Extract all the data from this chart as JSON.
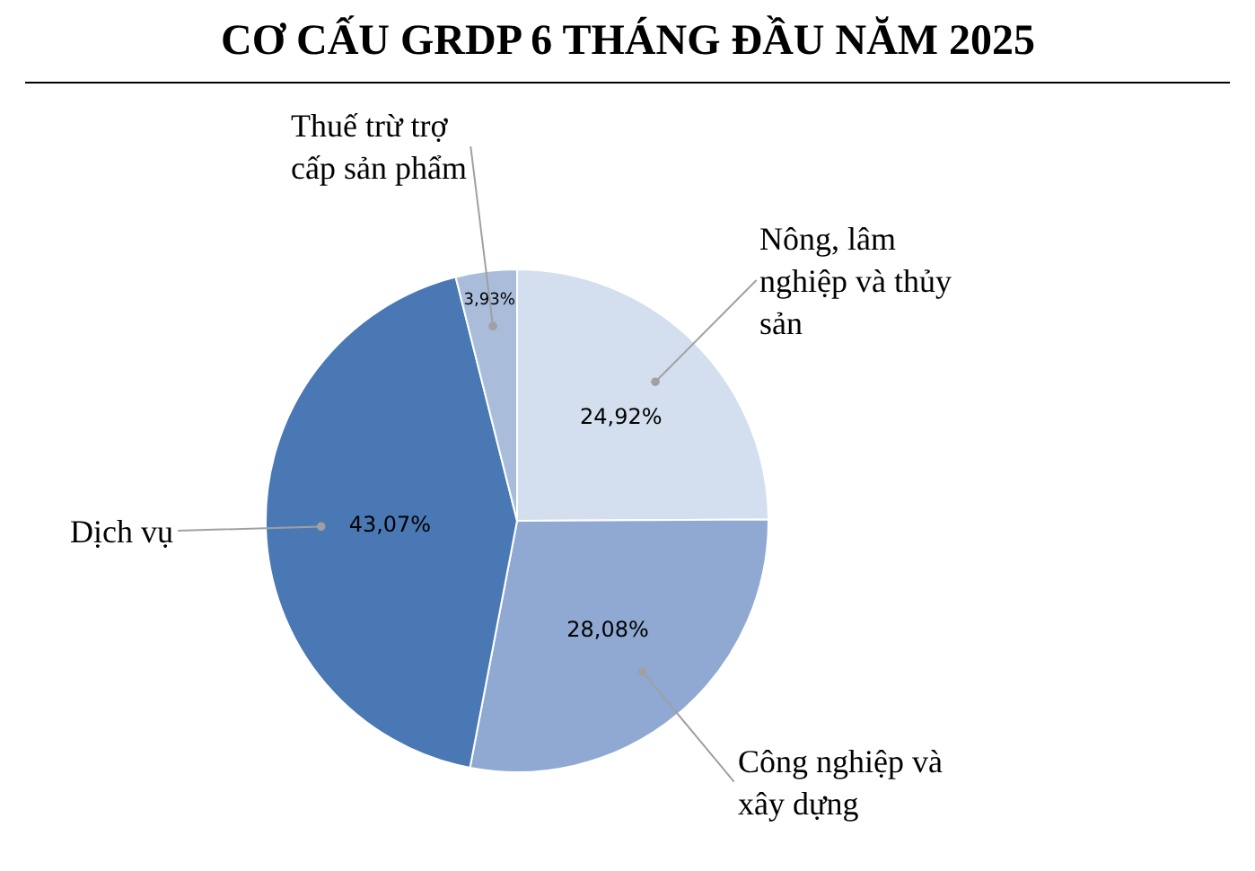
{
  "chart_data": {
    "type": "pie",
    "title": "CƠ CẤU GRDP 6 THÁNG ĐẦU NĂM 2025",
    "categories": [
      "Nông, lâm nghiệp và thủy sản",
      "Công nghiệp và xây dựng",
      "Dịch vụ",
      "Thuế trừ trợ cấp sản phẩm"
    ],
    "values": [
      24.92,
      28.08,
      43.07,
      3.93
    ],
    "colors": [
      "#d3deee",
      "#8fa9d2",
      "#4a78b4",
      "#a9bddb"
    ],
    "value_labels": [
      "24,92%",
      "28,08%",
      "43,07%",
      "3,93%"
    ],
    "legend": false
  }
}
